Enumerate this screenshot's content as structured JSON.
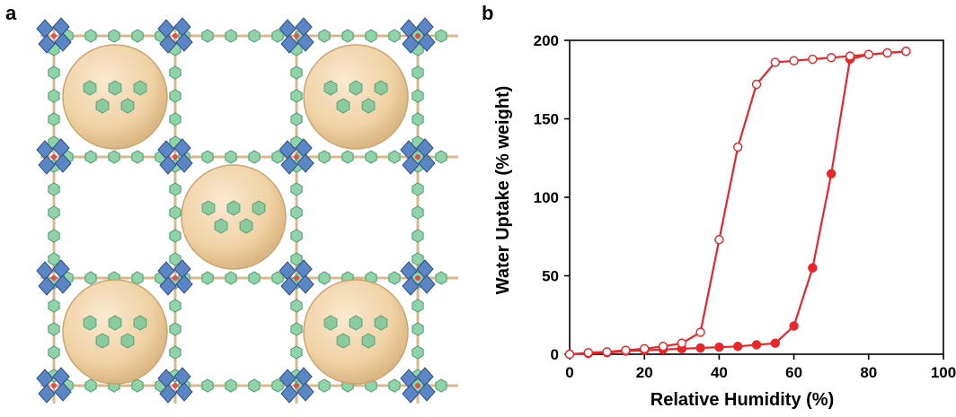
{
  "panels": {
    "a": "a",
    "b": "b"
  },
  "structure_figure": {
    "subject": "crystal-structure-illustration"
  },
  "chart_data": {
    "type": "line",
    "xlabel": "Relative Humidity (%)",
    "ylabel": "Water Uptake (% weight)",
    "xlim": [
      0,
      100
    ],
    "ylim": [
      0,
      200
    ],
    "xticks": [
      "0",
      "20",
      "40",
      "60",
      "80",
      "100"
    ],
    "yticks": [
      "0",
      "50",
      "100",
      "150",
      "200"
    ],
    "grid": false,
    "series": [
      {
        "style": "filled-circles",
        "color": "#e8262a",
        "x": [
          0,
          5,
          10,
          15,
          20,
          25,
          30,
          35,
          40,
          45,
          50,
          55,
          60,
          65,
          70,
          75,
          80,
          85,
          90
        ],
        "y": [
          0,
          0.5,
          1,
          2,
          2.5,
          3,
          3.5,
          4,
          4.5,
          5,
          6,
          7,
          18,
          55,
          115,
          188,
          191,
          192,
          193
        ]
      },
      {
        "style": "open-circles",
        "color": "#e8262a",
        "x": [
          90,
          85,
          80,
          75,
          70,
          65,
          60,
          55,
          50,
          45,
          40,
          35,
          30,
          25,
          20,
          15,
          10,
          5,
          0
        ],
        "y": [
          193,
          192,
          191,
          190,
          189,
          188,
          187,
          186,
          172,
          132,
          73,
          14,
          7,
          5,
          3.5,
          2.5,
          1.5,
          1,
          0
        ]
      }
    ]
  }
}
